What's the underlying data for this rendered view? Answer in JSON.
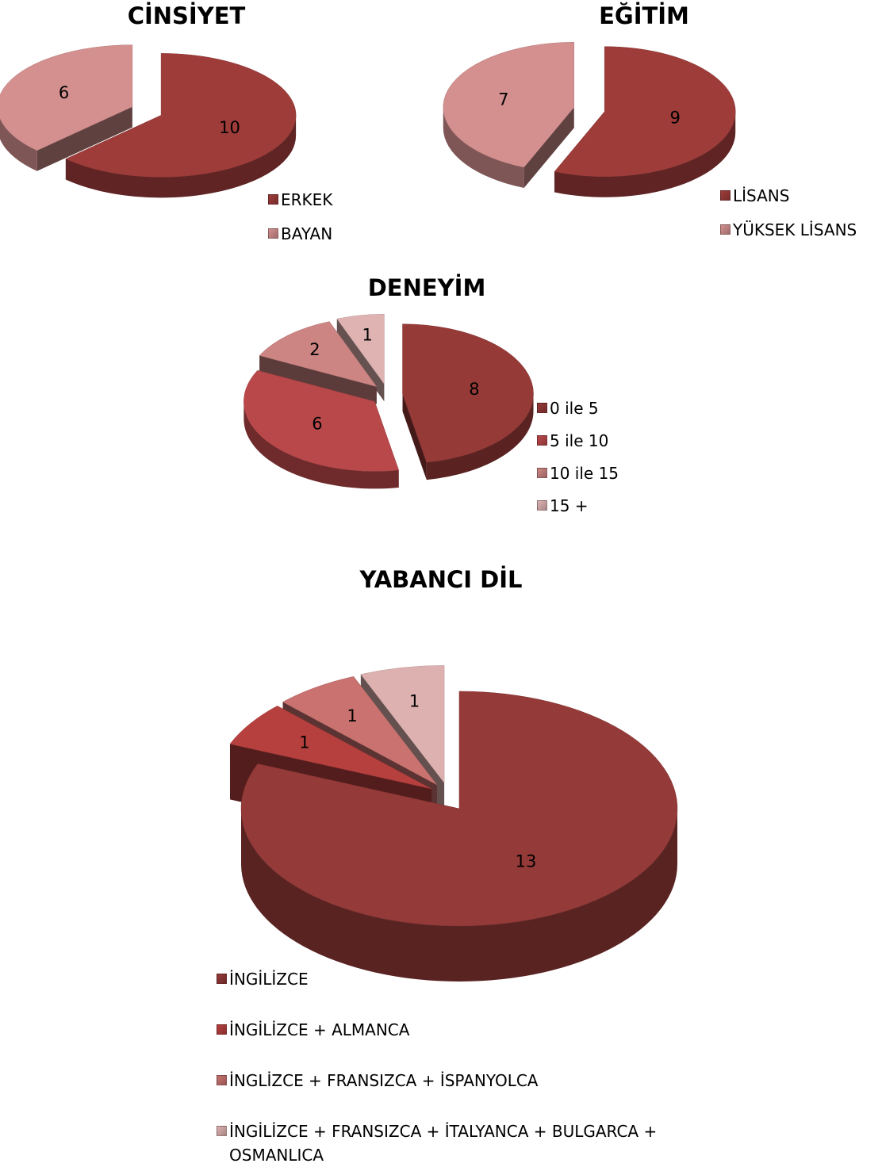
{
  "chart_data": [
    {
      "type": "pie",
      "title": "CİNSİYET",
      "categories": [
        "ERKEK",
        "BAYAN"
      ],
      "values": [
        10,
        6
      ],
      "colors": [
        "#9e3c3a",
        "#d4908f"
      ],
      "legend": "bottom-right"
    },
    {
      "type": "pie",
      "title": "EĞİTİM",
      "categories": [
        "LİSANS",
        "YÜKSEK LİSANS"
      ],
      "values": [
        9,
        7
      ],
      "colors": [
        "#9e3c3a",
        "#d4908f"
      ],
      "legend": "bottom-right"
    },
    {
      "type": "pie",
      "title": "DENEYİM",
      "categories": [
        "0 ile 5",
        "5 ile 10",
        "10 ile 15",
        "15 +"
      ],
      "values": [
        8,
        6,
        2,
        1
      ],
      "colors": [
        "#963a38",
        "#b9484a",
        "#cd8583",
        "#deb3b2"
      ],
      "legend": "right"
    },
    {
      "type": "pie",
      "title": "YABANCI DİL",
      "categories": [
        "İNGİLİZCE",
        "İNGİLİZCE + ALMANCA",
        "İNGLİZCE + FRANSIZCA + İSPANYOLCA",
        "İNGİLİZCE + FRANSIZCA + İTALYANCA + BULGARCA + OSMANLICA"
      ],
      "values": [
        13,
        1,
        1,
        1
      ],
      "colors": [
        "#943a38",
        "#b6403e",
        "#c9726f",
        "#ddb1b0"
      ],
      "legend": "bottom"
    }
  ]
}
